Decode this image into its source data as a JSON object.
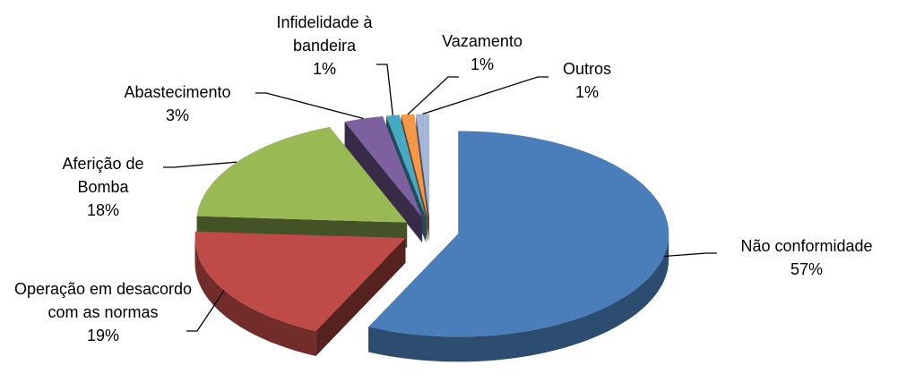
{
  "chart_data": {
    "type": "pie3d",
    "categories": [
      "Não conformidade",
      "Operação em desacordo com as normas",
      "Aferição de Bomba",
      "Abastecimento",
      "Infidelidade à bandeira",
      "Vazamento",
      "Outros"
    ],
    "values": [
      57,
      19,
      18,
      3,
      1,
      1,
      1
    ],
    "value_labels": [
      "57%",
      "19%",
      "18%",
      "3%",
      "1%",
      "1%",
      "1%"
    ],
    "colors": [
      "#4a7ebb",
      "#be4b48",
      "#98b954",
      "#7d60a0",
      "#46aac5",
      "#f79646",
      "#a5b6da"
    ]
  }
}
